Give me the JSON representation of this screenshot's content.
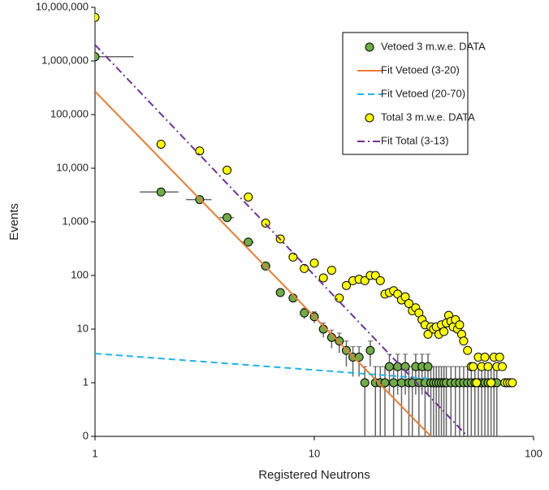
{
  "chart_data": {
    "type": "scatter",
    "xlabel": "Registered Neutrons",
    "ylabel": "Events",
    "xscale": "log",
    "yscale": "log",
    "xlim": [
      1,
      100
    ],
    "xticks": [
      1,
      10,
      100
    ],
    "ylim": [
      0.1,
      10000000
    ],
    "yticks": [
      {
        "value": 0.1,
        "label": "0"
      },
      1,
      10,
      100,
      {
        "value": 1000,
        "label": "1,000"
      },
      {
        "value": 10000,
        "label": "10,000"
      },
      {
        "value": 100000,
        "label": "100,000"
      },
      {
        "value": 1000000,
        "label": "1,000,000"
      },
      {
        "value": 10000000,
        "label": "10,000,000"
      }
    ],
    "grid": false,
    "legend": "upper right",
    "series": [
      {
        "name": "Vetoed 3 m.w.e. DATA",
        "kind": "markers",
        "color": "#70ad47",
        "x": [
          1,
          2,
          3,
          4,
          5,
          6,
          7,
          8,
          9,
          10,
          11,
          12,
          13,
          14,
          15,
          16,
          17,
          18,
          19,
          20,
          21,
          22,
          23,
          24,
          25,
          26,
          27,
          28,
          29,
          30,
          31,
          32,
          33,
          34,
          35,
          36,
          37,
          38,
          39,
          40,
          42,
          44,
          46,
          48,
          50,
          52,
          54,
          56,
          58,
          60,
          62,
          64,
          66,
          68
        ],
        "values": [
          1200000,
          3600,
          2600,
          1200,
          420,
          150,
          48,
          38,
          20,
          17,
          10,
          7,
          6,
          4,
          3,
          3,
          1,
          4,
          1,
          1,
          1,
          2,
          1,
          2,
          1,
          2,
          1,
          1,
          2,
          1,
          2,
          1,
          2,
          1,
          1,
          1,
          1,
          1,
          1,
          1,
          1,
          1,
          1,
          1,
          1,
          1,
          1,
          1,
          1,
          1,
          1,
          1,
          1,
          1
        ],
        "yerr": [
          1095,
          60,
          51,
          35,
          20,
          12,
          7,
          6,
          4.5,
          4,
          3,
          2.6,
          2.4,
          2,
          1.7,
          1.7,
          1,
          2,
          1,
          1,
          1,
          1.4,
          1,
          1.4,
          1,
          1.4,
          1,
          1,
          1.4,
          1,
          1.4,
          1,
          1.4,
          1,
          1,
          1,
          1,
          1,
          1,
          1,
          1,
          1,
          1,
          1,
          1,
          1,
          1,
          1,
          1,
          1,
          1,
          1,
          1,
          1
        ],
        "xerr": [
          0.5,
          0.4,
          0.4,
          0.3,
          0.3,
          0.3,
          null,
          null,
          null,
          null,
          null,
          null,
          null,
          null,
          null,
          null,
          null,
          null,
          null,
          null,
          null,
          null,
          null,
          null,
          null,
          null,
          null,
          null,
          null,
          null,
          null,
          null,
          null,
          null,
          null,
          null,
          null,
          null,
          null,
          null,
          null,
          null,
          null,
          null,
          null,
          null,
          null,
          null,
          null,
          null,
          null,
          null,
          null,
          null
        ]
      },
      {
        "name": "Fit Vetoed (3-20)",
        "kind": "line",
        "dash": "solid",
        "color": "#ed7d31",
        "x": [
          1,
          34
        ],
        "values": [
          270000,
          0.1
        ]
      },
      {
        "name": "Fit Vetoed (20-70)",
        "kind": "line",
        "dash": "dashed",
        "color": "#1fb4e6",
        "x": [
          1,
          33
        ],
        "values": [
          3.5,
          1.2
        ]
      },
      {
        "name": "Total 3 m.w.e. DATA",
        "kind": "markers",
        "color": "#ffff00",
        "x": [
          1,
          2,
          3,
          4,
          5,
          6,
          7,
          8,
          9,
          10,
          11,
          12,
          13,
          14,
          15,
          16,
          17,
          18,
          19,
          20,
          21,
          22,
          23,
          24,
          25,
          26,
          27,
          28,
          29,
          30,
          31,
          32,
          33,
          34,
          35,
          36,
          37,
          38,
          39,
          40,
          41,
          42,
          43,
          44,
          45,
          46,
          47,
          48,
          50,
          52,
          53,
          55,
          56,
          58,
          60,
          62,
          64,
          66,
          68,
          70,
          72,
          74,
          76,
          78,
          80
        ],
        "values": [
          6500000,
          28000,
          21000,
          9200,
          2900,
          950,
          480,
          220,
          135,
          170,
          90,
          125,
          38,
          65,
          80,
          85,
          80,
          100,
          100,
          80,
          45,
          48,
          52,
          45,
          35,
          40,
          30,
          22,
          25,
          20,
          15,
          12,
          8,
          11,
          10,
          11,
          8,
          12,
          9,
          13,
          18,
          14,
          11,
          15,
          10,
          12,
          8,
          6,
          4,
          2,
          2,
          1,
          3,
          2,
          3,
          2,
          1,
          3,
          2,
          3,
          2,
          1,
          1,
          1,
          1
        ]
      },
      {
        "name": "Fit Total (3-13)",
        "kind": "line",
        "dash": "dashdot",
        "color": "#7030a0",
        "x": [
          1,
          50
        ],
        "values": [
          2000000,
          0.1
        ]
      }
    ]
  }
}
